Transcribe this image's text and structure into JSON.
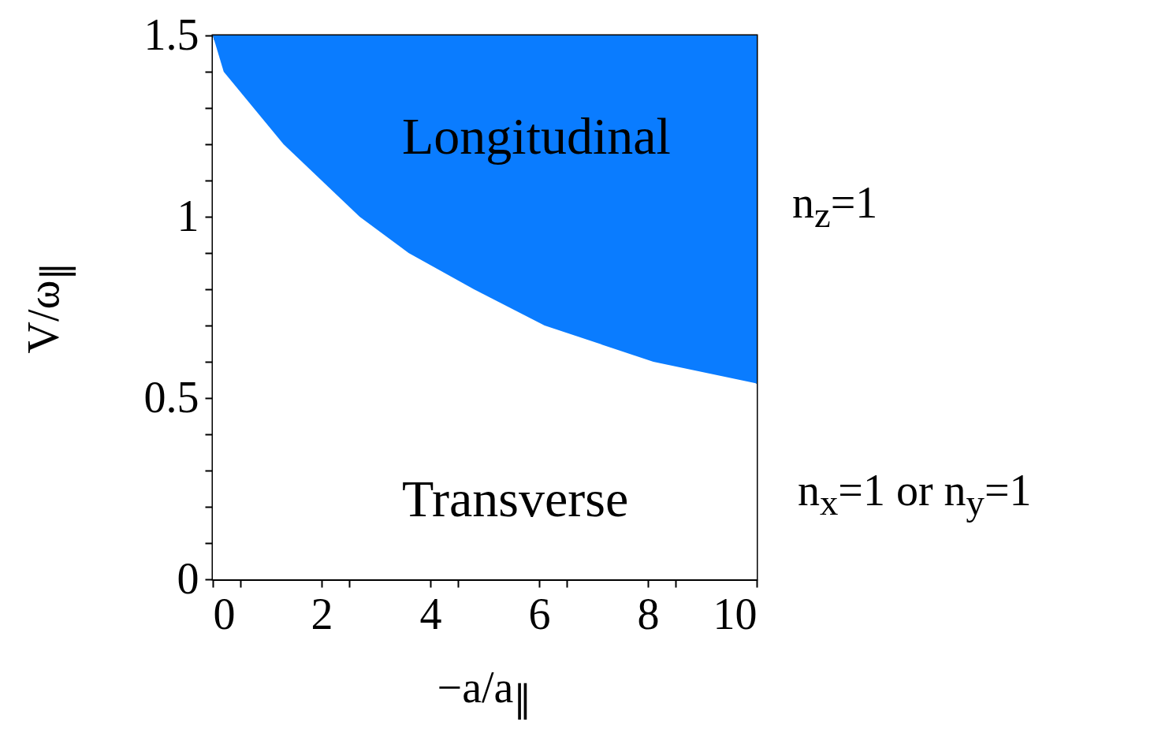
{
  "chart_data": {
    "type": "area",
    "stacked": true,
    "xlabel": "−a/a$_{∥}$",
    "ylabel": "V/ω$_{∥}$",
    "x": [
      0,
      0.2,
      1.3,
      2.7,
      3.6,
      4.8,
      6.1,
      8.1,
      10
    ],
    "series": [
      {
        "color": "#ffffff",
        "values": [
          1.5,
          1.4,
          1.2,
          1.0,
          0.9,
          0.8,
          0.7,
          0.6,
          0.54
        ]
      },
      {
        "color": "#0a7cff",
        "values": [
          0,
          0.1,
          0.3,
          0.5,
          0.6,
          0.7,
          0.8,
          0.9,
          0.96
        ]
      }
    ],
    "xlim": [
      0,
      10
    ],
    "ylim": [
      0,
      1.5
    ],
    "xticks": [
      0,
      {
        "value": 0.5,
        "label": null
      },
      2,
      {
        "value": 2.5,
        "label": null
      },
      4,
      {
        "value": 4.5,
        "label": null
      },
      6,
      {
        "value": 6.5,
        "label": null
      },
      8,
      {
        "value": 8.5,
        "label": null
      },
      10
    ],
    "yticks": [
      0,
      {
        "value": 0.1,
        "label": null
      },
      {
        "value": 0.2,
        "label": null
      },
      {
        "value": 0.3,
        "label": null
      },
      {
        "value": 0.4,
        "label": null
      },
      0.5,
      {
        "value": 0.6,
        "label": null
      },
      {
        "value": 0.7,
        "label": null
      },
      {
        "value": 0.8,
        "label": null
      },
      {
        "value": 0.9,
        "label": null
      },
      1,
      {
        "value": 1.1,
        "label": null
      },
      {
        "value": 1.2,
        "label": null
      },
      {
        "value": 1.3,
        "label": null
      },
      {
        "value": 1.4,
        "label": null
      },
      1.5
    ],
    "grid": false,
    "annotations": [
      "Longitudinal",
      "Transverse",
      "n$_{z}$=1",
      "n$_{x}$=1  or  n$_{y}$=1"
    ]
  }
}
